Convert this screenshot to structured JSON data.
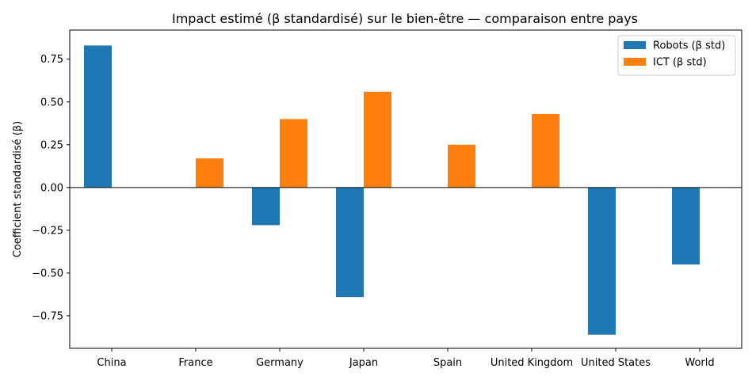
{
  "chart_data": {
    "type": "bar",
    "title": "Impact estimé (β standardisé) sur le bien-être — comparaison entre pays",
    "xlabel": "",
    "ylabel": "Coefficient standardisé (β)",
    "categories": [
      "China",
      "France",
      "Germany",
      "Japan",
      "Spain",
      "United Kingdom",
      "United States",
      "World"
    ],
    "series": [
      {
        "name": "Robots (β std)",
        "color": "#1f77b4",
        "values": [
          0.83,
          null,
          -0.22,
          -0.64,
          null,
          null,
          -0.86,
          -0.45
        ]
      },
      {
        "name": "ICT (β std)",
        "color": "#ff7f0e",
        "values": [
          null,
          0.17,
          0.4,
          0.56,
          0.25,
          0.43,
          null,
          null
        ]
      }
    ],
    "ylim": [
      -0.94,
      0.92
    ],
    "yticks": [
      -0.75,
      -0.5,
      -0.25,
      0.0,
      0.25,
      0.5,
      0.75
    ],
    "ytick_labels": [
      "−0.75",
      "−0.50",
      "−0.25",
      "0.00",
      "0.25",
      "0.50",
      "0.75"
    ],
    "legend_position": "top-right",
    "grid": false,
    "zero_line": true
  }
}
